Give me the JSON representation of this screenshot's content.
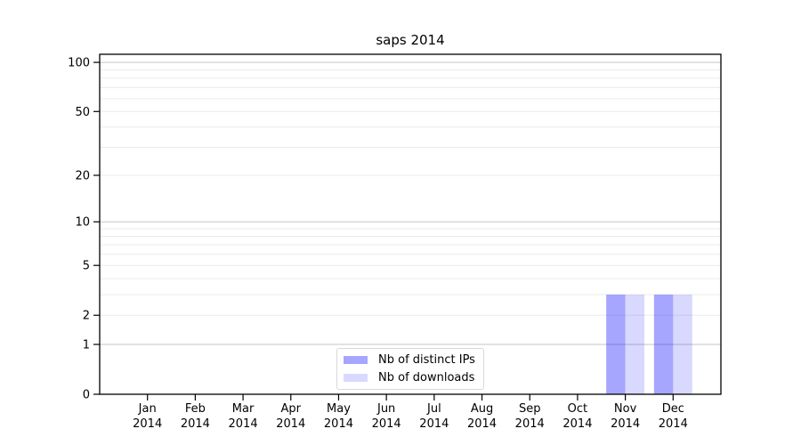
{
  "title": "saps 2014",
  "legend": {
    "position": "lower center",
    "items": [
      {
        "label": "Nb of distinct IPs"
      },
      {
        "label": "Nb of downloads"
      }
    ]
  },
  "colors": {
    "background": "#ffffff",
    "axis": "#000000",
    "text": "#000000",
    "grid_major": "#c6c6c6",
    "grid_minor": "#ebebeb",
    "legend_border": "#d9d9d9",
    "bar_distinct_ips_blended": "#a6a6ff",
    "bar_downloads_blended": "#d9d9ff"
  },
  "chart_data": {
    "type": "bar",
    "title": "saps 2014",
    "categories": [
      "Jan 2014",
      "Feb 2014",
      "Mar 2014",
      "Apr 2014",
      "May 2014",
      "Jun 2014",
      "Jul 2014",
      "Aug 2014",
      "Sep 2014",
      "Oct 2014",
      "Nov 2014",
      "Dec 2014"
    ],
    "series": [
      {
        "name": "Nb of distinct IPs",
        "color": "#0000ff",
        "alpha": 0.35,
        "values": [
          0,
          0,
          0,
          0,
          0,
          0,
          0,
          0,
          0,
          0,
          3,
          3
        ]
      },
      {
        "name": "Nb of downloads",
        "color": "#0000ff",
        "alpha": 0.15,
        "values": [
          0,
          0,
          0,
          0,
          0,
          0,
          0,
          0,
          0,
          0,
          3,
          3
        ]
      }
    ],
    "xlabel": "",
    "ylabel": "",
    "y_scale": "log10(1+v)",
    "ylim": [
      0,
      112
    ],
    "y_ticks": [
      0,
      1,
      2,
      5,
      10,
      20,
      50,
      100
    ],
    "y_major_gridlines": [
      1,
      10,
      100
    ],
    "y_minor_gridlines": [
      2,
      3,
      4,
      5,
      6,
      7,
      8,
      9,
      20,
      30,
      40,
      50,
      60,
      70,
      80,
      90
    ],
    "grid": true,
    "legend_position": "lower center"
  }
}
